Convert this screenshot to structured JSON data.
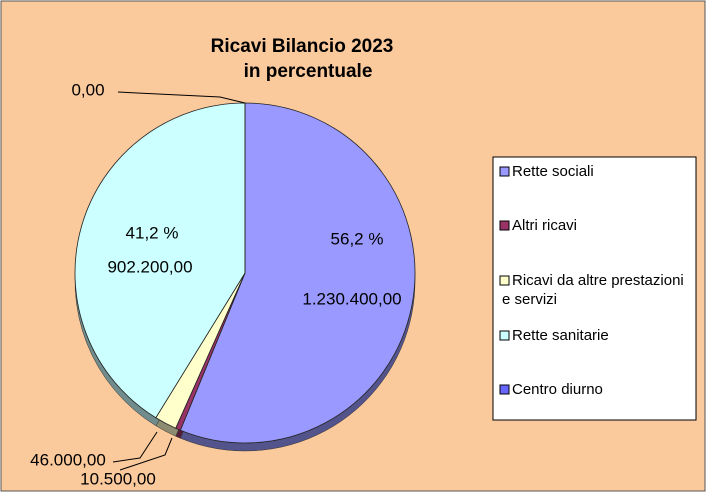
{
  "chart_data": {
    "type": "pie",
    "title": [
      "Ricavi Bilancio 2023",
      "in percentuale"
    ],
    "categories": [
      "Rette sociali",
      "Altri ricavi",
      "Ricavi da altre prestazioni e servizi",
      "Rette sanitarie",
      "Centro diurno"
    ],
    "values": [
      1230400,
      10500,
      46000,
      902200,
      0
    ],
    "value_labels": [
      "1.230.400,00",
      "10.500,00",
      "46.000,00",
      "902.200,00",
      "0,00"
    ],
    "percent_labels": [
      "56,2 %",
      null,
      null,
      "41,2 %",
      null
    ],
    "colors": [
      "#9999ff",
      "#993366",
      "#ffffcc",
      "#ccffff",
      "#6666ff"
    ],
    "legend": "right"
  }
}
